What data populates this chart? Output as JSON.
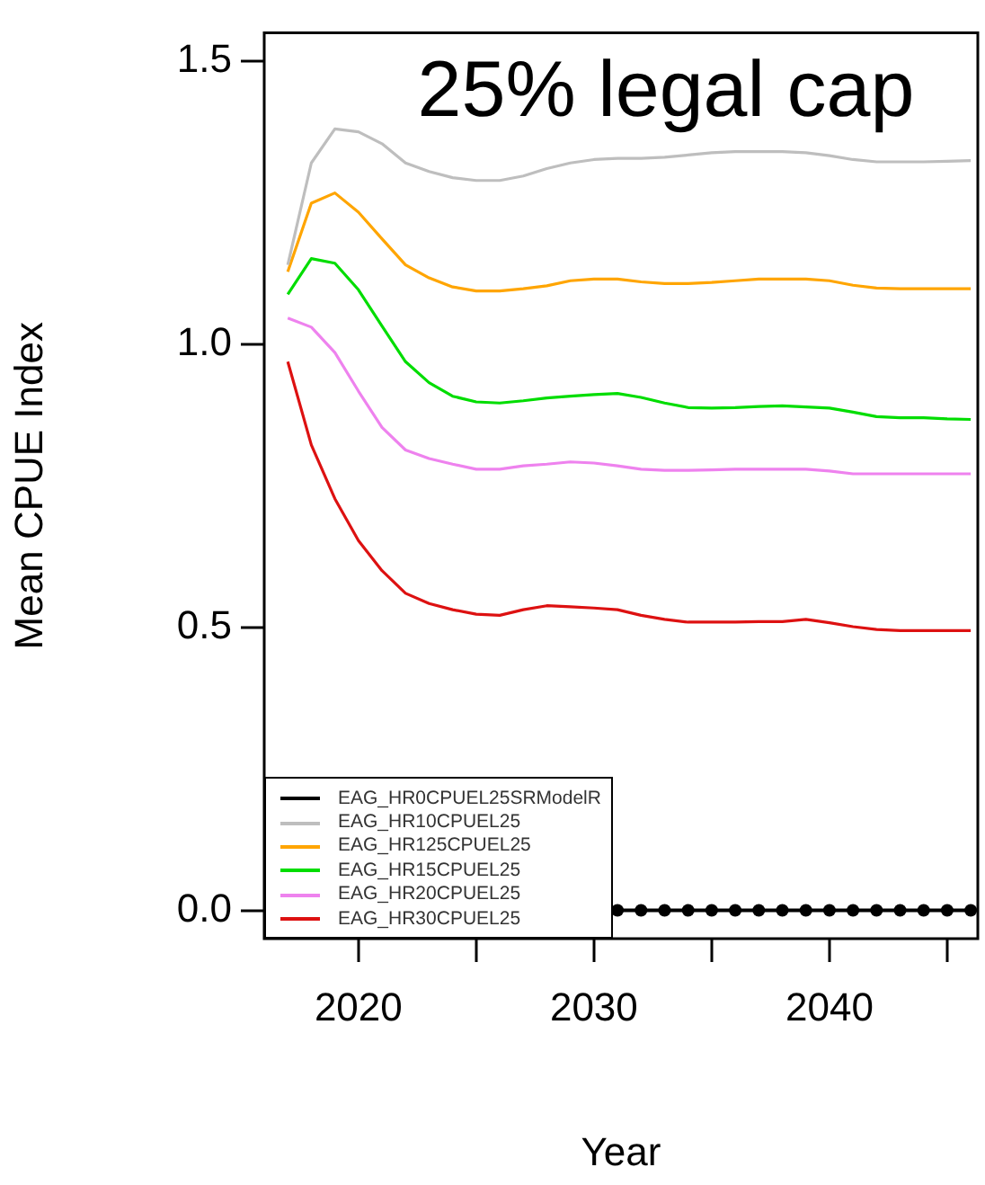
{
  "chart_data": {
    "type": "line",
    "xlabel": "Year",
    "ylabel": "Mean CPUE Index",
    "annotations": [
      "25% legal cap"
    ],
    "x": [
      2017,
      2018,
      2019,
      2020,
      2021,
      2022,
      2023,
      2024,
      2025,
      2026,
      2027,
      2028,
      2029,
      2030,
      2031,
      2032,
      2033,
      2034,
      2035,
      2036,
      2037,
      2038,
      2039,
      2040,
      2041,
      2042,
      2043,
      2044,
      2045,
      2046
    ],
    "xlim": [
      2016,
      2046.3
    ],
    "xticks": [
      2020,
      {
        "value": 2025,
        "label": null
      },
      2030,
      {
        "value": 2035,
        "label": null
      },
      2040,
      {
        "value": 2045,
        "label": null
      }
    ],
    "ylim": [
      -0.05,
      1.55
    ],
    "yticks": [
      {
        "value": 0,
        "label": "0.0"
      },
      {
        "value": 0.5,
        "label": "0.5"
      },
      {
        "value": 1,
        "label": "1.0"
      },
      {
        "value": 1.5,
        "label": "1.5"
      }
    ],
    "grid": false,
    "legend": "bottom left",
    "line_style": "solid",
    "series": [
      {
        "name": "EAG_HR0CPUEL25SRModelR",
        "color": "#000000",
        "marker": "circle",
        "values": [
          null,
          null,
          null,
          null,
          null,
          null,
          null,
          null,
          null,
          null,
          null,
          null,
          null,
          null,
          0,
          0,
          0,
          0,
          0,
          0,
          0,
          0,
          0,
          0,
          0,
          0,
          0,
          0,
          0,
          0
        ]
      },
      {
        "name": "EAG_HR10CPUEL25",
        "color": "#bebebe",
        "values": [
          1.14,
          1.32,
          1.38,
          1.375,
          1.354,
          1.32,
          1.305,
          1.294,
          1.289,
          1.289,
          1.297,
          1.31,
          1.32,
          1.326,
          1.328,
          1.328,
          1.33,
          1.334,
          1.338,
          1.34,
          1.34,
          1.34,
          1.338,
          1.333,
          1.326,
          1.322,
          1.322,
          1.322,
          1.323,
          1.324
        ]
      },
      {
        "name": "EAG_HR125CPUEL25",
        "color": "#ffa500",
        "values": [
          1.128,
          1.249,
          1.267,
          1.233,
          1.186,
          1.14,
          1.117,
          1.101,
          1.094,
          1.094,
          1.098,
          1.103,
          1.112,
          1.115,
          1.115,
          1.11,
          1.107,
          1.107,
          1.109,
          1.112,
          1.115,
          1.115,
          1.115,
          1.112,
          1.104,
          1.099,
          1.098,
          1.098,
          1.098,
          1.098
        ]
      },
      {
        "name": "EAG_HR15CPUEL25",
        "color": "#00dd00",
        "values": [
          1.088,
          1.151,
          1.143,
          1.096,
          1.032,
          0.969,
          0.932,
          0.908,
          0.898,
          0.896,
          0.9,
          0.905,
          0.908,
          0.911,
          0.913,
          0.906,
          0.896,
          0.888,
          0.887,
          0.888,
          0.89,
          0.891,
          0.889,
          0.887,
          0.88,
          0.872,
          0.87,
          0.87,
          0.868,
          0.867
        ]
      },
      {
        "name": "EAG_HR20CPUEL25",
        "color": "#ee82ee",
        "values": [
          1.046,
          1.03,
          0.985,
          0.917,
          0.853,
          0.813,
          0.798,
          0.788,
          0.779,
          0.779,
          0.785,
          0.788,
          0.792,
          0.79,
          0.785,
          0.779,
          0.777,
          0.777,
          0.778,
          0.779,
          0.779,
          0.779,
          0.779,
          0.776,
          0.771,
          0.771,
          0.771,
          0.771,
          0.771,
          0.771
        ]
      },
      {
        "name": "EAG_HR30CPUEL25",
        "color": "#dd1111",
        "values": [
          0.969,
          0.822,
          0.727,
          0.653,
          0.6,
          0.56,
          0.542,
          0.531,
          0.523,
          0.521,
          0.531,
          0.538,
          0.536,
          0.534,
          0.531,
          0.521,
          0.514,
          0.509,
          0.509,
          0.509,
          0.51,
          0.51,
          0.514,
          0.508,
          0.501,
          0.496,
          0.494,
          0.494,
          0.494,
          0.494
        ]
      }
    ]
  }
}
